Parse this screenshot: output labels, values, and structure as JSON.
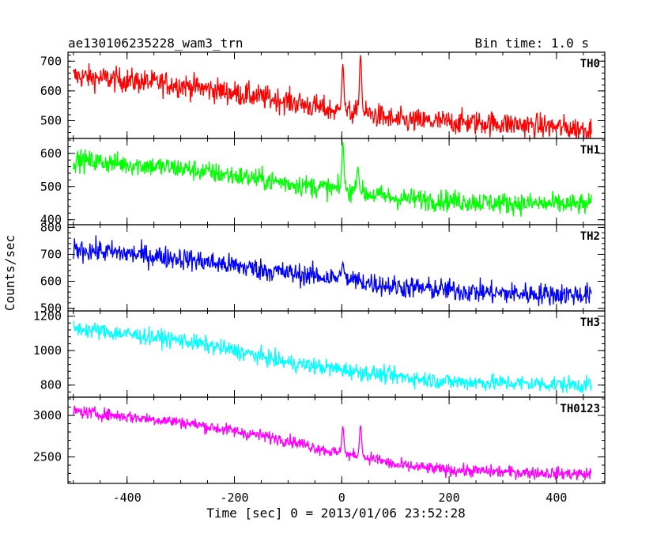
{
  "chart_data": {
    "type": "line",
    "title": "ae130106235228_wam3_trn",
    "bin_label": "Bin time: 1.0 s",
    "xlabel": "Time [sec] 0 = 2013/01/06 23:52:28",
    "ylabel": "Counts/sec",
    "xlim": [
      -510,
      490
    ],
    "xticks": [
      "-400",
      "-200",
      "0",
      "200",
      "400"
    ],
    "xtick_values": [
      -400,
      -200,
      0,
      200,
      400
    ],
    "x_range_data": [
      -500,
      465
    ],
    "grid": false,
    "panels": [
      {
        "name": "TH0",
        "color": "#ff0000",
        "ylim": [
          440,
          730
        ],
        "yticks": [
          "500",
          "600",
          "700"
        ],
        "ytick_values": [
          500,
          600,
          700
        ],
        "trend": [
          [
            -500,
            650
          ],
          [
            -300,
            620
          ],
          [
            -100,
            565
          ],
          [
            -5,
            530
          ],
          [
            60,
            520
          ],
          [
            100,
            500
          ],
          [
            300,
            490
          ],
          [
            465,
            470
          ]
        ],
        "noise": 38,
        "spikes": [
          {
            "x": 2,
            "value": 690
          },
          {
            "x": 35,
            "value": 720
          }
        ]
      },
      {
        "name": "TH1",
        "color": "#00ff00",
        "ylim": [
          385,
          645
        ],
        "yticks": [
          "400",
          "500",
          "600"
        ],
        "ytick_values": [
          400,
          500,
          600
        ],
        "trend": [
          [
            -500,
            580
          ],
          [
            -300,
            555
          ],
          [
            -100,
            510
          ],
          [
            0,
            490
          ],
          [
            100,
            465
          ],
          [
            300,
            450
          ],
          [
            465,
            445
          ]
        ],
        "noise": 30,
        "spikes": [
          {
            "x": 2,
            "value": 635
          },
          {
            "x": 30,
            "value": 560
          }
        ]
      },
      {
        "name": "TH2",
        "color": "#0000ff",
        "ylim": [
          490,
          810
        ],
        "yticks": [
          "500",
          "600",
          "700",
          "800"
        ],
        "ytick_values": [
          500,
          600,
          700,
          800
        ],
        "trend": [
          [
            -500,
            720
          ],
          [
            -300,
            685
          ],
          [
            -100,
            630
          ],
          [
            0,
            610
          ],
          [
            100,
            580
          ],
          [
            300,
            555
          ],
          [
            465,
            550
          ]
        ],
        "noise": 38,
        "spikes": [
          {
            "x": 2,
            "value": 670
          }
        ]
      },
      {
        "name": "TH3",
        "color": "#00ffff",
        "ylim": [
          730,
          1230
        ],
        "yticks": [
          "800",
          "1000",
          "1200"
        ],
        "ytick_values": [
          800,
          1000,
          1200
        ],
        "trend": [
          [
            -500,
            1130
          ],
          [
            -300,
            1060
          ],
          [
            -200,
            1000
          ],
          [
            -100,
            930
          ],
          [
            0,
            890
          ],
          [
            100,
            850
          ],
          [
            200,
            820
          ],
          [
            465,
            800
          ]
        ],
        "noise": 45,
        "spikes": []
      },
      {
        "name": "TH0123",
        "color": "#ff00ff",
        "ylim": [
          2180,
          3220
        ],
        "yticks": [
          "2500",
          "3000"
        ],
        "ytick_values": [
          2500,
          3000
        ],
        "trend": [
          [
            -500,
            3050
          ],
          [
            -300,
            2920
          ],
          [
            -100,
            2700
          ],
          [
            -5,
            2540
          ],
          [
            60,
            2480
          ],
          [
            100,
            2400
          ],
          [
            200,
            2340
          ],
          [
            300,
            2320
          ],
          [
            465,
            2290
          ]
        ],
        "noise": 70,
        "spikes": [
          {
            "x": 2,
            "value": 2870
          },
          {
            "x": 35,
            "value": 2880
          }
        ]
      }
    ]
  }
}
